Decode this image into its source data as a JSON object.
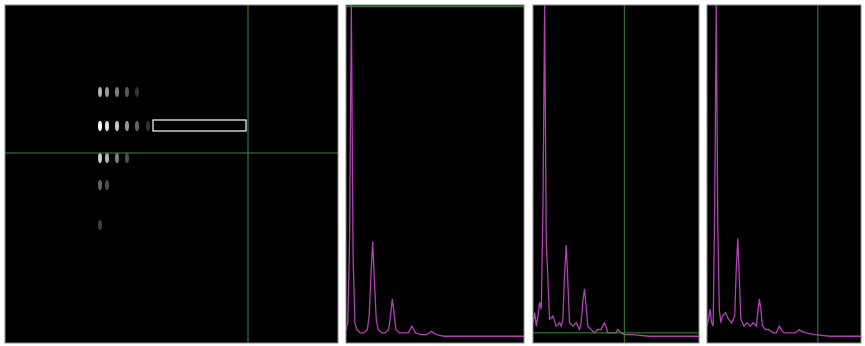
{
  "chart_data": [
    {
      "type": "scatter",
      "tick_labels": false,
      "color": "#ffffff",
      "xlim": [
        0,
        333
      ],
      "ylim": [
        338,
        0
      ],
      "x": [
        95,
        102,
        112,
        122,
        132,
        95,
        102,
        112,
        122,
        132,
        143,
        95,
        102,
        112,
        122,
        95,
        102,
        95
      ],
      "values": [
        87,
        87,
        87,
        87,
        87,
        121,
        121,
        121,
        121,
        121,
        121,
        153,
        153,
        153,
        153,
        180,
        180,
        220
      ],
      "brightness": [
        0.7,
        0.6,
        0.5,
        0.35,
        0.2,
        1,
        0.9,
        0.8,
        0.6,
        0.4,
        0.2,
        0.8,
        0.7,
        0.5,
        0.3,
        0.4,
        0.3,
        0.25
      ],
      "cursor": {
        "x": 243,
        "y": 148
      },
      "roi": [
        148,
        115,
        241,
        126
      ]
    },
    {
      "type": "line",
      "tick_labels": false,
      "color": "#b040b4",
      "xlim": [
        0,
        100
      ],
      "ylim": [
        0,
        100
      ],
      "x": [
        0,
        1,
        2,
        3,
        4,
        5,
        6,
        8,
        10,
        12,
        13,
        14,
        15,
        16,
        17,
        18,
        20,
        22,
        24,
        25,
        26,
        27,
        28,
        30,
        33,
        35,
        36,
        37,
        38,
        39,
        42,
        45,
        47,
        48,
        49,
        51,
        55,
        65,
        75,
        85,
        100
      ],
      "values": [
        4,
        6,
        30,
        100,
        25,
        6,
        4,
        3,
        3,
        4,
        8,
        20,
        30,
        18,
        7,
        4,
        3,
        3,
        4,
        8,
        13,
        9,
        4,
        3,
        3,
        3,
        4,
        5,
        4,
        3,
        2.5,
        2.5,
        3,
        3.5,
        3,
        2.5,
        2,
        2,
        2,
        2,
        2
      ],
      "cursor": {
        "y": 99.5
      }
    },
    {
      "type": "line",
      "tick_labels": false,
      "color": "#b040b4",
      "xlim": [
        0,
        100
      ],
      "ylim": [
        0,
        100
      ],
      "x": [
        0,
        1,
        2,
        3,
        4,
        5,
        6,
        7,
        8,
        10,
        12,
        14,
        16,
        17,
        18,
        19,
        20,
        21,
        22,
        24,
        26,
        28,
        29,
        30,
        31,
        32,
        33,
        35,
        37,
        39,
        41,
        42,
        43,
        44,
        45,
        47,
        49,
        50,
        51,
        52,
        53,
        55,
        60,
        70,
        80,
        90,
        100
      ],
      "values": [
        6,
        9,
        5,
        8,
        12,
        10,
        40,
        100,
        30,
        7,
        8,
        5,
        6,
        5,
        7,
        20,
        29,
        18,
        6,
        5,
        6,
        4,
        6,
        12,
        16,
        11,
        5,
        4,
        3,
        4,
        4,
        5,
        6,
        5,
        3,
        3,
        3,
        3,
        4,
        3.5,
        3,
        2.5,
        2.5,
        2,
        2,
        2,
        2
      ],
      "cursor": {
        "x": 55,
        "y": 3
      }
    },
    {
      "type": "line",
      "tick_labels": false,
      "color": "#b040b4",
      "xlim": [
        0,
        100
      ],
      "ylim": [
        0,
        100
      ],
      "x": [
        0,
        1,
        2,
        3,
        4,
        5,
        6,
        7,
        8,
        9,
        10,
        12,
        14,
        16,
        18,
        19,
        20,
        21,
        22,
        24,
        26,
        28,
        30,
        32,
        33,
        34,
        35,
        36,
        38,
        40,
        43,
        45,
        46,
        47,
        48,
        50,
        53,
        57,
        59,
        60,
        61,
        64,
        70,
        80,
        90,
        100
      ],
      "values": [
        5,
        7,
        10,
        6,
        5,
        40,
        100,
        35,
        10,
        6,
        8,
        9,
        7,
        6,
        8,
        22,
        31,
        19,
        7,
        5,
        6,
        5,
        6,
        5,
        9,
        13,
        10,
        5,
        4,
        4,
        3,
        3,
        4,
        5,
        4,
        3,
        3,
        3,
        3.5,
        4,
        3.5,
        3,
        2.5,
        2,
        2,
        2
      ],
      "cursor": {
        "x": 72
      }
    }
  ]
}
